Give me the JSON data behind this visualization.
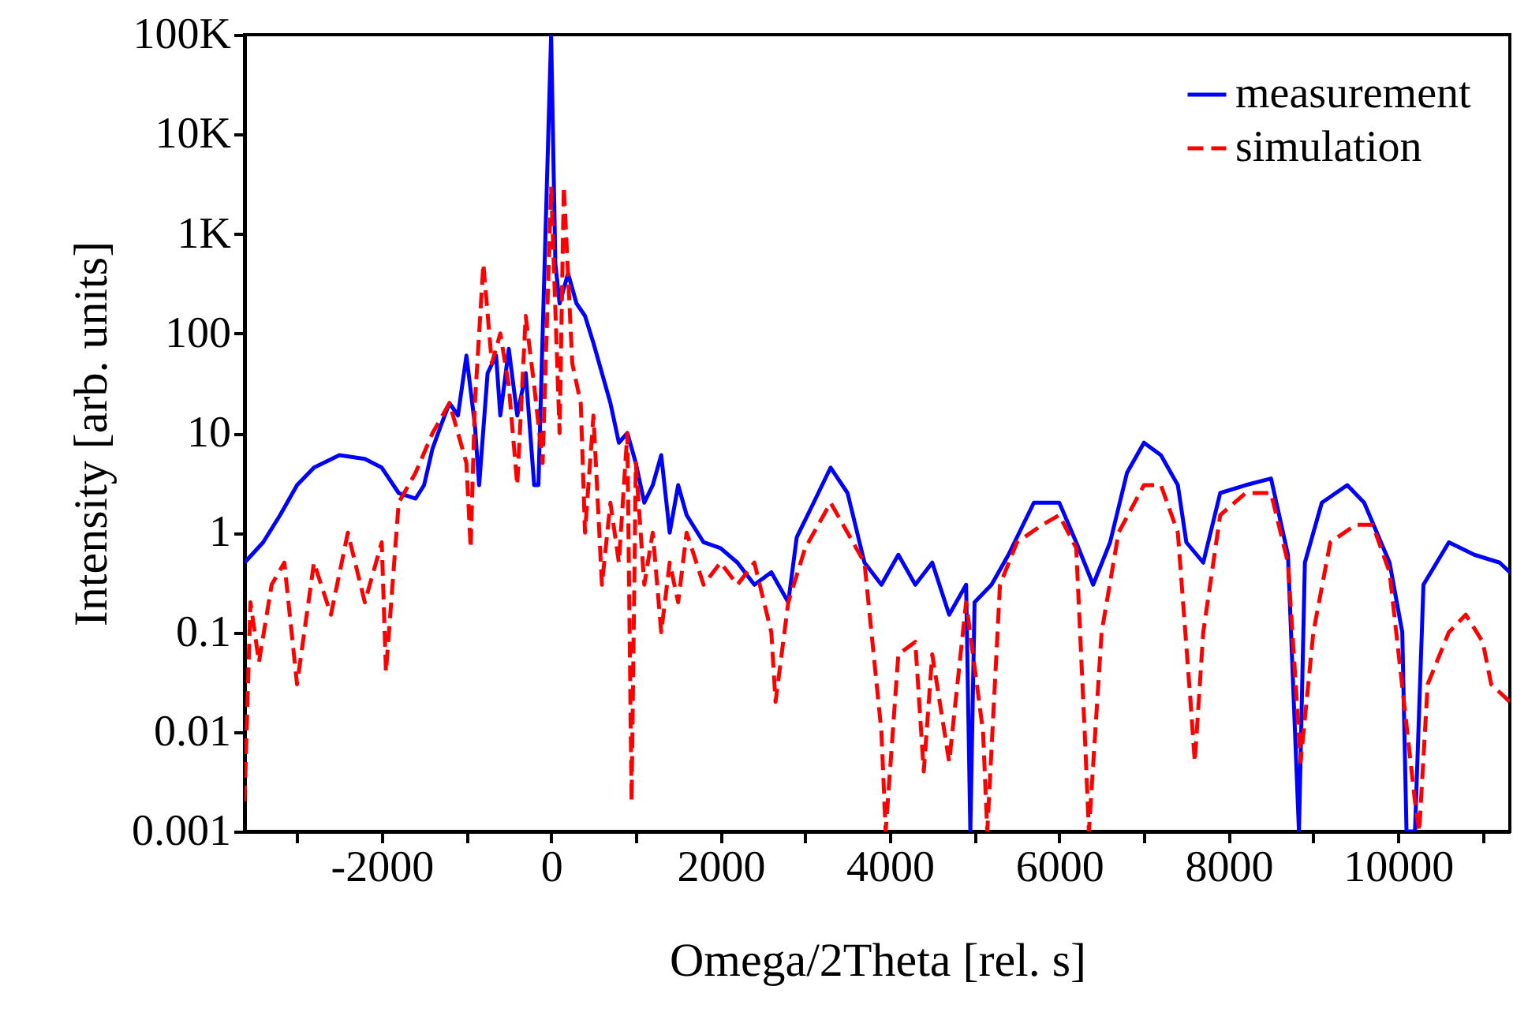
{
  "chart_data": {
    "type": "line",
    "xlabel": "Omega/2Theta [rel. s]",
    "ylabel": "Intensity [arb. units]",
    "log": "y",
    "xlim": [
      -3620,
      11320
    ],
    "ylim": [
      0.001,
      100000
    ],
    "xticks": [
      {
        "value": -3000,
        "label": null
      },
      -2000,
      {
        "value": -1000,
        "label": null
      },
      0,
      {
        "value": 1000,
        "label": null
      },
      2000,
      {
        "value": 3000,
        "label": null
      },
      4000,
      {
        "value": 5000,
        "label": null
      },
      6000,
      {
        "value": 7000,
        "label": null
      },
      8000,
      {
        "value": 9000,
        "label": null
      },
      10000,
      {
        "value": 11000,
        "label": null
      }
    ],
    "yticks": [
      0.001,
      0.01,
      0.1,
      1,
      10,
      100,
      {
        "value": 1000,
        "label": "1K"
      },
      {
        "value": 10000,
        "label": "10K"
      },
      {
        "value": 100000,
        "label": "100K"
      }
    ],
    "legend": "top right",
    "grid": false,
    "series": [
      {
        "name": "measurement",
        "color": "#0000ff",
        "line_style": "solid",
        "x": [
          -3620,
          -3400,
          -3200,
          -3000,
          -2800,
          -2500,
          -2200,
          -2000,
          -1800,
          -1600,
          -1500,
          -1400,
          -1300,
          -1200,
          -1100,
          -1000,
          -900,
          -850,
          -750,
          -650,
          -600,
          -500,
          -400,
          -300,
          -200,
          -150,
          -100,
          0,
          50,
          100,
          200,
          300,
          400,
          500,
          600,
          700,
          800,
          900,
          1000,
          1100,
          1200,
          1300,
          1400,
          1500,
          1600,
          1800,
          2000,
          2200,
          2400,
          2600,
          2800,
          2900,
          3100,
          3300,
          3500,
          3700,
          3900,
          4100,
          4300,
          4500,
          4700,
          4900,
          4950,
          5000,
          5200,
          5400,
          5700,
          6000,
          6200,
          6400,
          6600,
          6800,
          7000,
          7200,
          7400,
          7500,
          7700,
          7900,
          8200,
          8500,
          8700,
          8830,
          8900,
          9100,
          9400,
          9600,
          9900,
          10050,
          10100,
          10200,
          10300,
          10600,
          10900,
          11200,
          11320
        ],
        "values": [
          0.5,
          0.8,
          1.5,
          3,
          4.5,
          6,
          5.5,
          4.5,
          2.5,
          2.2,
          3,
          7,
          12,
          20,
          15,
          60,
          12,
          3,
          40,
          60,
          15,
          70,
          15,
          40,
          3,
          3,
          100,
          100000,
          500,
          200,
          400,
          200,
          150,
          80,
          40,
          20,
          8,
          10,
          5,
          2,
          3,
          6,
          1,
          3,
          1.5,
          0.8,
          0.7,
          0.5,
          0.3,
          0.4,
          0.2,
          0.9,
          2,
          4.5,
          2.5,
          0.5,
          0.3,
          0.6,
          0.3,
          0.5,
          0.15,
          0.3,
          0.001,
          0.2,
          0.3,
          0.6,
          2,
          2,
          0.8,
          0.3,
          0.8,
          4,
          8,
          6,
          3,
          0.8,
          0.5,
          2.5,
          3,
          3.5,
          0.6,
          0.001,
          0.5,
          2,
          3,
          2,
          0.5,
          0.1,
          0.001,
          0.001,
          0.3,
          0.8,
          0.6,
          0.5,
          0.4
        ]
      },
      {
        "name": "simulation",
        "color": "#ff0000",
        "line_style": "dashed",
        "x": [
          -3620,
          -3550,
          -3450,
          -3300,
          -3150,
          -3000,
          -2800,
          -2600,
          -2400,
          -2200,
          -2000,
          -1950,
          -1800,
          -1600,
          -1400,
          -1200,
          -1100,
          -1000,
          -950,
          -900,
          -800,
          -700,
          -600,
          -500,
          -400,
          -300,
          -200,
          -100,
          0,
          100,
          150,
          250,
          350,
          400,
          500,
          600,
          700,
          800,
          900,
          950,
          1000,
          1100,
          1200,
          1300,
          1400,
          1500,
          1600,
          1800,
          2000,
          2200,
          2400,
          2600,
          2650,
          2800,
          3000,
          3300,
          3500,
          3700,
          3900,
          3950,
          4100,
          4300,
          4400,
          4500,
          4700,
          4900,
          5100,
          5150,
          5300,
          5500,
          5800,
          6000,
          6200,
          6300,
          6350,
          6500,
          6700,
          7000,
          7200,
          7400,
          7550,
          7600,
          7700,
          7900,
          8200,
          8500,
          8700,
          8850,
          9000,
          9200,
          9500,
          9700,
          9900,
          10200,
          10250,
          10350,
          10600,
          10800,
          11000,
          11100,
          11320
        ],
        "values": [
          0.002,
          0.2,
          0.05,
          0.3,
          0.5,
          0.03,
          0.5,
          0.15,
          1,
          0.2,
          0.8,
          0.04,
          2,
          4,
          10,
          20,
          10,
          5,
          0.7,
          20,
          500,
          50,
          100,
          30,
          3,
          150,
          30,
          5,
          3000,
          10,
          3000,
          50,
          20,
          1,
          15,
          0.3,
          2,
          0.5,
          10,
          0.002,
          5,
          0.3,
          1,
          0.1,
          0.5,
          0.2,
          1,
          0.3,
          0.5,
          0.3,
          0.5,
          0.1,
          0.02,
          0.2,
          0.7,
          2,
          1,
          0.5,
          0.01,
          0.001,
          0.06,
          0.08,
          0.004,
          0.06,
          0.005,
          0.2,
          0.01,
          0.001,
          0.3,
          0.8,
          1.2,
          1.5,
          0.7,
          0.01,
          0.001,
          0.1,
          1,
          3,
          3,
          1,
          0.02,
          0.005,
          0.1,
          1.5,
          2.5,
          2.5,
          0.5,
          0.005,
          0.1,
          0.8,
          1.2,
          1.2,
          0.4,
          0.002,
          0.001,
          0.03,
          0.1,
          0.15,
          0.08,
          0.03,
          0.02
        ]
      }
    ]
  }
}
